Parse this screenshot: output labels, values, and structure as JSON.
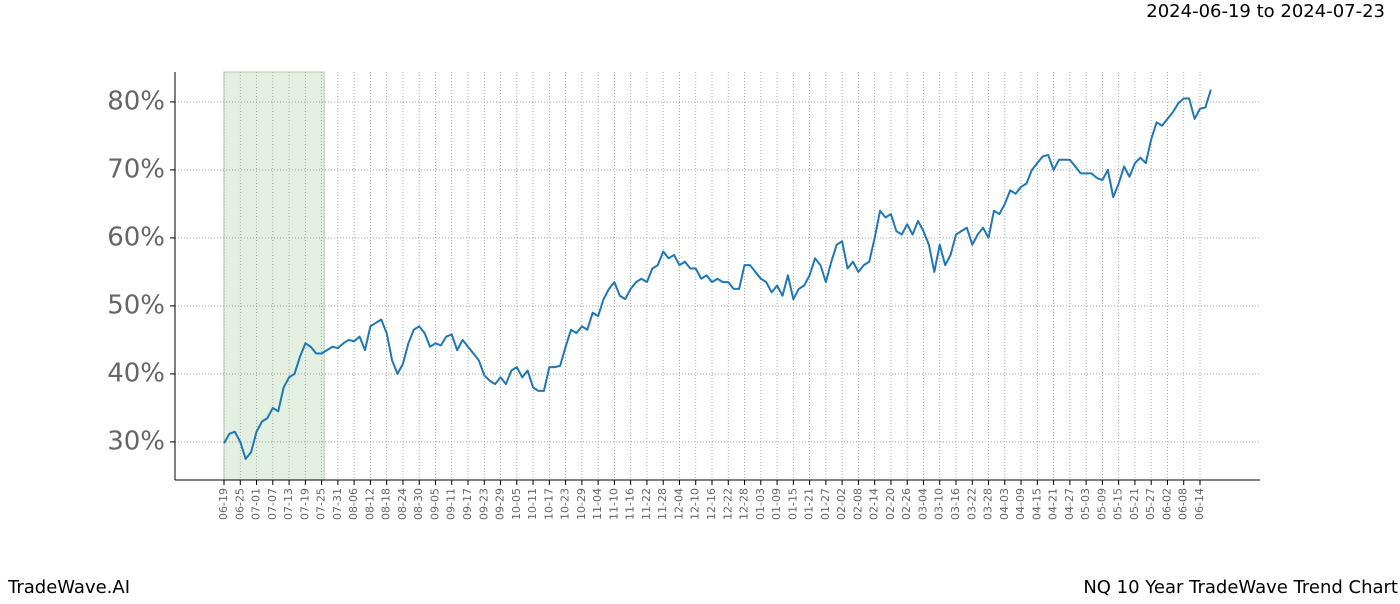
{
  "chart_data": {
    "type": "line",
    "title": "2024-06-19 to 2024-07-23",
    "footer_left": "TradeWave.AI",
    "footer_right": "NQ 10 Year TradeWave Trend Chart",
    "color": "#1f77b4",
    "grid": true,
    "shaded_span": {
      "start": 0,
      "end": 17,
      "color": "#e3efe0"
    },
    "ylim": [
      24.4,
      84.4
    ],
    "yticks": [
      {
        "value": 30,
        "label": "30%"
      },
      {
        "value": 40,
        "label": "40%"
      },
      {
        "value": 50,
        "label": "50%"
      },
      {
        "value": 60,
        "label": "60%"
      },
      {
        "value": 70,
        "label": "70%"
      },
      {
        "value": 80,
        "label": "80%"
      }
    ],
    "categories": [
      "06-19",
      null,
      null,
      "06-25",
      null,
      null,
      "07-01",
      null,
      null,
      "07-07",
      null,
      null,
      "07-13",
      null,
      null,
      "07-19",
      null,
      null,
      "07-25",
      null,
      null,
      "07-31",
      null,
      null,
      "08-06",
      null,
      null,
      "08-12",
      null,
      null,
      "08-18",
      null,
      null,
      "08-24",
      null,
      null,
      "08-30",
      null,
      null,
      "09-05",
      null,
      null,
      "09-11",
      null,
      null,
      "09-17",
      null,
      null,
      "09-23",
      null,
      null,
      "09-29",
      null,
      null,
      "10-05",
      null,
      null,
      "10-11",
      null,
      null,
      "10-17",
      null,
      null,
      "10-23",
      null,
      null,
      "10-29",
      null,
      null,
      "11-04",
      null,
      null,
      "11-10",
      null,
      null,
      "11-16",
      null,
      null,
      "11-22",
      null,
      null,
      "11-28",
      null,
      null,
      "12-04",
      null,
      null,
      "12-10",
      null,
      null,
      "12-16",
      null,
      null,
      "12-22",
      null,
      null,
      "12-28",
      null,
      null,
      "01-03",
      null,
      null,
      "01-09",
      null,
      null,
      "01-15",
      null,
      null,
      "01-21",
      null,
      null,
      "01-27",
      null,
      null,
      "02-02",
      null,
      null,
      "02-08",
      null,
      null,
      "02-14",
      null,
      null,
      "02-20",
      null,
      null,
      "02-26",
      null,
      null,
      "03-04",
      null,
      null,
      "03-10",
      null,
      null,
      "03-16",
      null,
      null,
      "03-22",
      null,
      null,
      "03-28",
      null,
      null,
      "04-03",
      null,
      null,
      "04-09",
      null,
      null,
      "04-15",
      null,
      null,
      "04-21",
      null,
      null,
      "04-27",
      null,
      null,
      "05-03",
      null,
      null,
      "05-09",
      null,
      null,
      "05-15",
      null,
      null,
      "05-21",
      null,
      null,
      "05-27",
      null,
      null,
      "06-02",
      null,
      null,
      "06-08",
      null,
      null,
      "06-14",
      null,
      null
    ],
    "values": [
      29.8,
      31.2,
      31.5,
      30,
      27.5,
      28.5,
      31.5,
      33,
      33.5,
      35,
      34.5,
      38,
      39.5,
      40,
      42.5,
      44.5,
      44,
      43,
      43,
      43.5,
      44,
      43.8,
      44.5,
      45,
      44.8,
      45.5,
      43.5,
      47,
      47.5,
      48,
      46,
      42,
      40,
      41.5,
      44.5,
      46.5,
      47,
      46,
      44,
      44.5,
      44.2,
      45.5,
      45.8,
      43.5,
      45,
      44,
      43,
      42,
      39.8,
      39,
      38.5,
      39.5,
      38.5,
      40.5,
      41,
      39.5,
      40.5,
      38,
      37.5,
      37.5,
      41,
      41,
      41.2,
      44,
      46.5,
      46,
      47,
      46.5,
      49,
      48.5,
      51,
      52.5,
      53.5,
      51.5,
      51,
      52.5,
      53.5,
      54,
      53.5,
      55.5,
      56,
      58,
      57,
      57.5,
      56,
      56.5,
      55.5,
      55.5,
      54,
      54.5,
      53.5,
      54,
      53.5,
      53.5,
      52.5,
      52.5,
      56,
      56,
      55,
      54,
      53.5,
      52,
      53,
      51.5,
      54.5,
      51,
      52.5,
      53,
      54.5,
      57,
      56,
      53.5,
      56.5,
      59,
      59.5,
      55.5,
      56.5,
      55,
      56,
      56.5,
      60,
      64,
      63,
      63.5,
      61,
      60.5,
      62,
      60.5,
      62.5,
      61,
      59,
      55,
      59,
      56,
      57.5,
      60.5,
      61,
      61.5,
      59,
      60.5,
      61.5,
      60,
      64,
      63.5,
      65,
      67,
      66.5,
      67.5,
      68,
      70,
      71,
      72,
      72.2,
      70,
      71.5,
      71.5,
      71.5,
      70.5,
      69.5,
      69.5,
      69.5,
      68.8,
      68.5,
      70,
      66,
      68,
      70.5,
      69,
      71,
      71.8,
      71,
      74.5,
      77,
      76.5,
      77.5,
      78.5,
      79.8,
      80.5,
      80.5,
      77.5,
      79,
      79.2,
      81.8
    ]
  }
}
